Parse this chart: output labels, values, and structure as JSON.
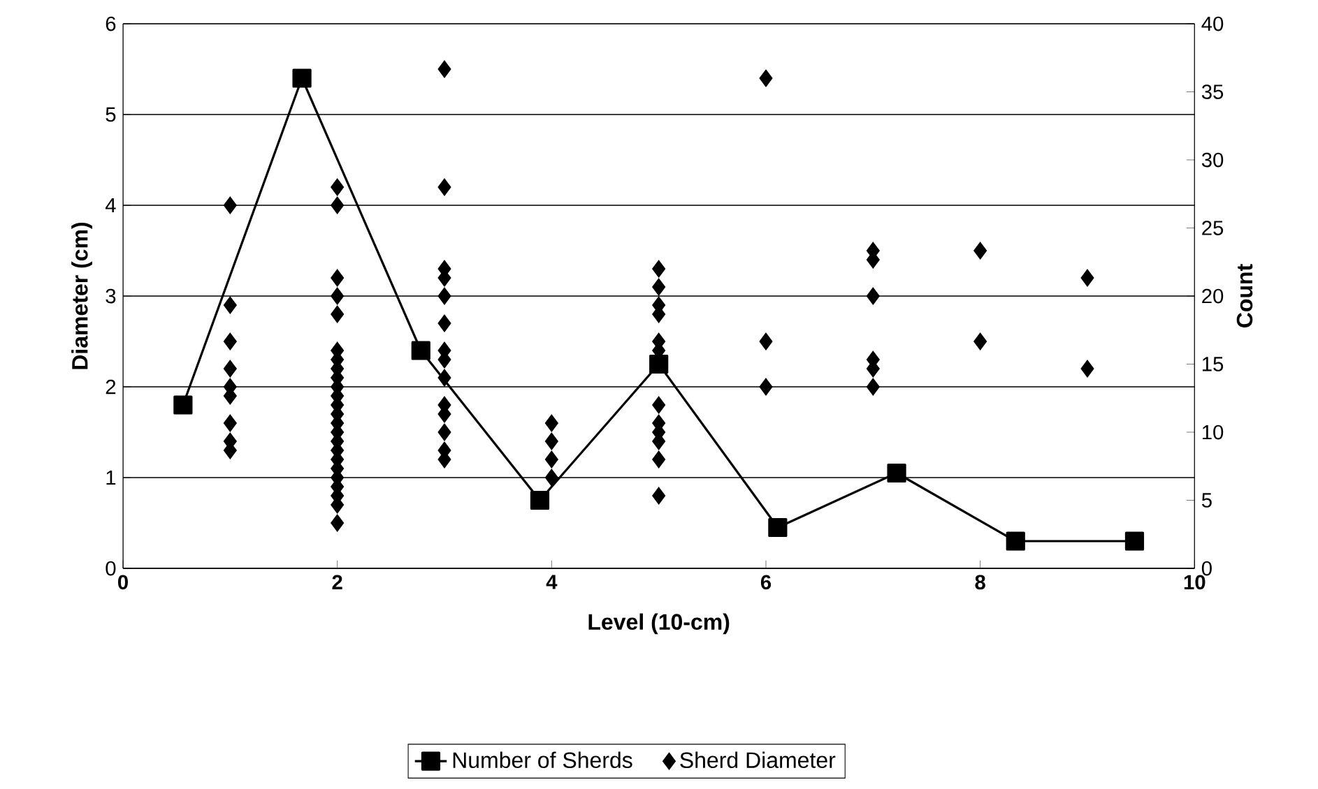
{
  "chart_data": {
    "type": "scatter",
    "xlabel": "Level (10-cm)",
    "ylabel": "Diameter (cm)",
    "y2label": "Count",
    "xlim": [
      0,
      10
    ],
    "xticks": [
      0,
      2,
      4,
      6,
      8,
      10
    ],
    "ylim": [
      0,
      6
    ],
    "yticks": [
      0,
      1,
      2,
      3,
      4,
      5,
      6
    ],
    "y2lim": [
      0,
      40
    ],
    "y2ticks": [
      0,
      5,
      10,
      15,
      20,
      25,
      30,
      35,
      40
    ],
    "grid": "y",
    "legend": "bottom",
    "series": [
      {
        "name": "Number of Sherds",
        "type": "line",
        "axis": "y2",
        "color": "#000000",
        "marker": "square",
        "x": [
          0.56,
          1.67,
          2.78,
          3.89,
          5,
          6.11,
          7.22,
          8.33,
          9.44
        ],
        "values": [
          12,
          36,
          16,
          5,
          15,
          3,
          7,
          2,
          2
        ]
      },
      {
        "name": "Sherd Diameter",
        "color": "#000000",
        "marker": "diamond",
        "x": [
          1,
          1,
          1,
          1,
          1,
          1,
          1,
          1,
          1,
          2,
          2,
          2,
          2,
          2,
          2,
          2,
          2,
          2,
          2,
          2,
          2,
          2,
          2,
          2,
          2,
          2,
          2,
          2,
          2,
          2,
          2,
          2,
          2,
          3,
          3,
          3,
          3,
          3,
          3,
          3,
          3,
          3,
          3,
          3,
          3,
          3,
          3,
          4,
          4,
          4,
          4,
          5,
          5,
          5,
          5,
          5,
          5,
          5,
          5,
          5,
          5,
          5,
          5,
          6,
          6,
          6,
          7,
          7,
          7,
          7,
          7,
          7,
          8,
          8,
          9,
          9
        ],
        "values": [
          4.0,
          2.9,
          2.5,
          2.2,
          2.0,
          1.9,
          1.6,
          1.4,
          1.3,
          4.2,
          4.0,
          3.2,
          3.0,
          2.8,
          2.4,
          2.3,
          2.2,
          2.1,
          2.0,
          1.9,
          1.8,
          1.7,
          1.6,
          1.5,
          1.4,
          1.3,
          1.2,
          1.1,
          1.0,
          0.9,
          0.8,
          0.7,
          0.5,
          5.5,
          4.2,
          3.3,
          3.2,
          3.0,
          2.7,
          2.4,
          2.3,
          2.1,
          1.8,
          1.7,
          1.5,
          1.3,
          1.2,
          1.6,
          1.4,
          1.2,
          1.0,
          3.3,
          3.1,
          2.9,
          2.8,
          2.5,
          2.4,
          1.8,
          1.6,
          1.5,
          1.4,
          1.2,
          0.8,
          5.4,
          2.5,
          2.0,
          3.5,
          3.4,
          3.0,
          2.3,
          2.2,
          2.0,
          3.5,
          2.5,
          3.2,
          2.2
        ]
      }
    ]
  }
}
